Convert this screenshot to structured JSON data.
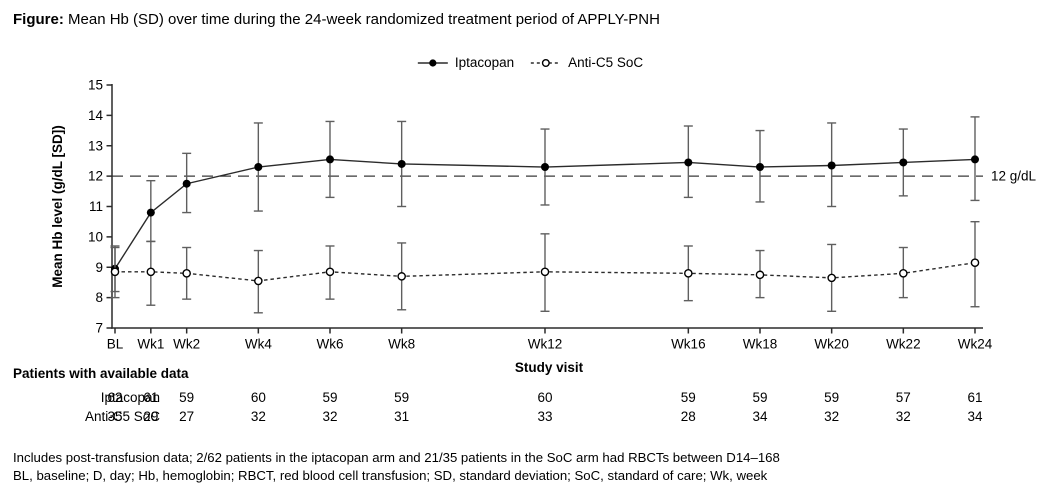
{
  "title": {
    "bold": "Figure:",
    "rest": " Mean Hb (SD) over time during the 24-week randomized treatment period of APPLY-PNH"
  },
  "chart_data": {
    "type": "line",
    "title": "Mean Hb (SD) over time during the 24-week randomized treatment period of APPLY-PNH",
    "xlabel": "Study visit",
    "ylabel": "Mean Hb level (g/dL [SD])",
    "ylim": [
      7,
      15
    ],
    "yticks": [
      7,
      8,
      9,
      10,
      11,
      12,
      13,
      14,
      15
    ],
    "categories": [
      "BL",
      "Wk1",
      "Wk2",
      "Wk4",
      "Wk6",
      "Wk8",
      "Wk12",
      "Wk16",
      "Wk18",
      "Wk20",
      "Wk22",
      "Wk24"
    ],
    "x_weeks": [
      0,
      1,
      2,
      4,
      6,
      8,
      12,
      16,
      18,
      20,
      22,
      24
    ],
    "grid": false,
    "legend_position": "top-center",
    "error_bars": "SD",
    "reference_line": {
      "value": 12,
      "label": "12 g/dL"
    },
    "series": [
      {
        "name": "Iptacopan",
        "marker": "filled-circle",
        "line": "solid",
        "mean": [
          8.95,
          10.8,
          11.75,
          12.3,
          12.55,
          12.4,
          12.3,
          12.45,
          12.3,
          12.35,
          12.45,
          12.55
        ],
        "upper": [
          9.65,
          11.85,
          12.75,
          13.75,
          13.8,
          13.8,
          13.55,
          13.65,
          13.5,
          13.75,
          13.55,
          13.95
        ],
        "lower": [
          8.2,
          9.85,
          10.8,
          10.85,
          11.3,
          11.0,
          11.05,
          11.3,
          11.15,
          11.0,
          11.35,
          11.2
        ]
      },
      {
        "name": "Anti-C5 SoC",
        "marker": "open-circle",
        "line": "dashed",
        "mean": [
          8.85,
          8.85,
          8.8,
          8.55,
          8.85,
          8.7,
          8.85,
          8.8,
          8.75,
          8.65,
          8.8,
          9.15
        ],
        "upper": [
          9.7,
          9.85,
          9.65,
          9.55,
          9.7,
          9.8,
          10.1,
          9.7,
          9.55,
          9.75,
          9.65,
          10.5
        ],
        "lower": [
          8.0,
          7.75,
          7.95,
          7.5,
          7.95,
          7.6,
          7.55,
          7.9,
          8.0,
          7.55,
          8.0,
          7.7
        ]
      }
    ]
  },
  "table": {
    "header": "Patients with available data",
    "x_title": "Study visit",
    "rows": [
      {
        "label": "Iptacopan",
        "values": [
          62,
          61,
          59,
          60,
          59,
          59,
          60,
          59,
          59,
          59,
          57,
          61
        ]
      },
      {
        "label": "Anti-C5 SoC",
        "values": [
          35,
          29,
          27,
          32,
          32,
          31,
          33,
          28,
          34,
          32,
          32,
          34
        ]
      }
    ]
  },
  "footnotes": [
    "Includes post-transfusion data; 2/62 patients in the iptacopan arm and 21/35 patients in the SoC arm had RBCTs between D14–168",
    "BL, baseline; D, day; Hb, hemoglobin; RBCT, red blood cell transfusion; SD, standard deviation; SoC, standard of care; Wk, week"
  ],
  "colors": {
    "background": "#ffffff",
    "text": "#000000",
    "axis": "#2b2b2b",
    "series": "#2b2b2b",
    "marker": "#000000",
    "error_bar": "#5f5f5f",
    "reference": "#3a3a3a"
  }
}
